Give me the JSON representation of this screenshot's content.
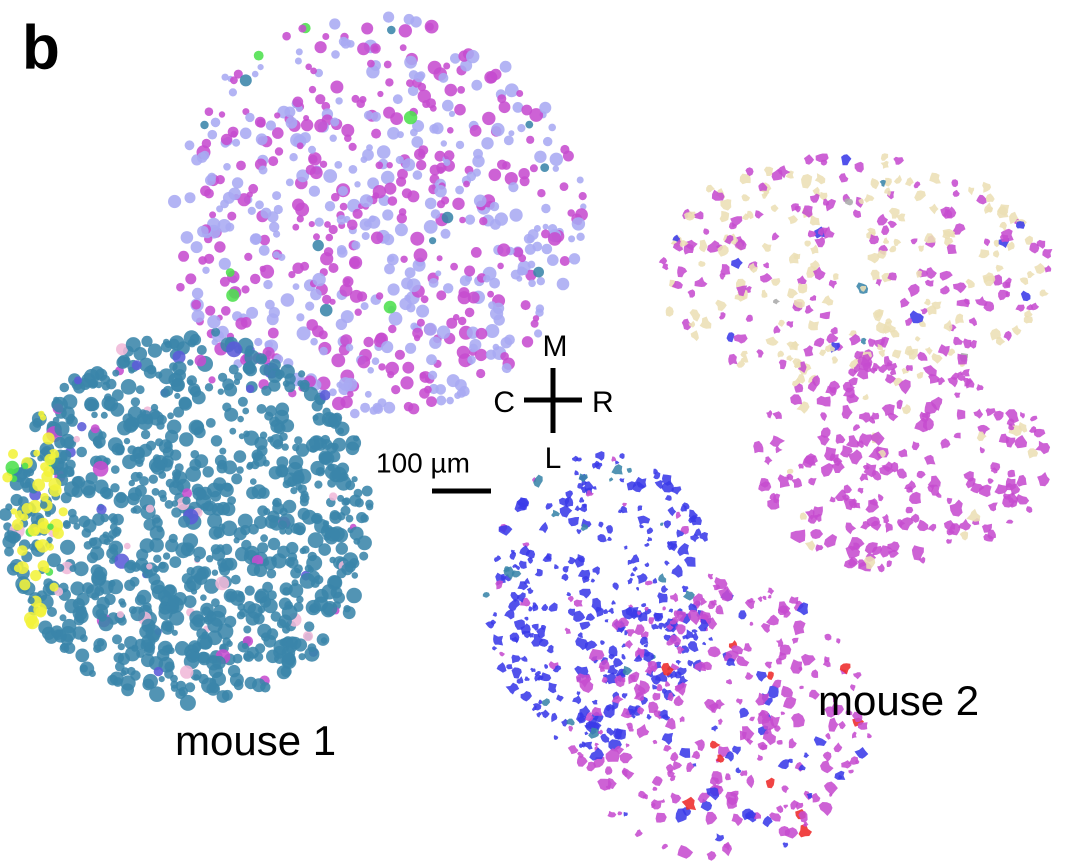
{
  "panel_label": "b",
  "orientation": {
    "top": "M",
    "left": "C",
    "right": "R",
    "bottom": "L"
  },
  "scale_bar": "100 µm",
  "groups": [
    "mouse 1",
    "mouse 2"
  ]
}
